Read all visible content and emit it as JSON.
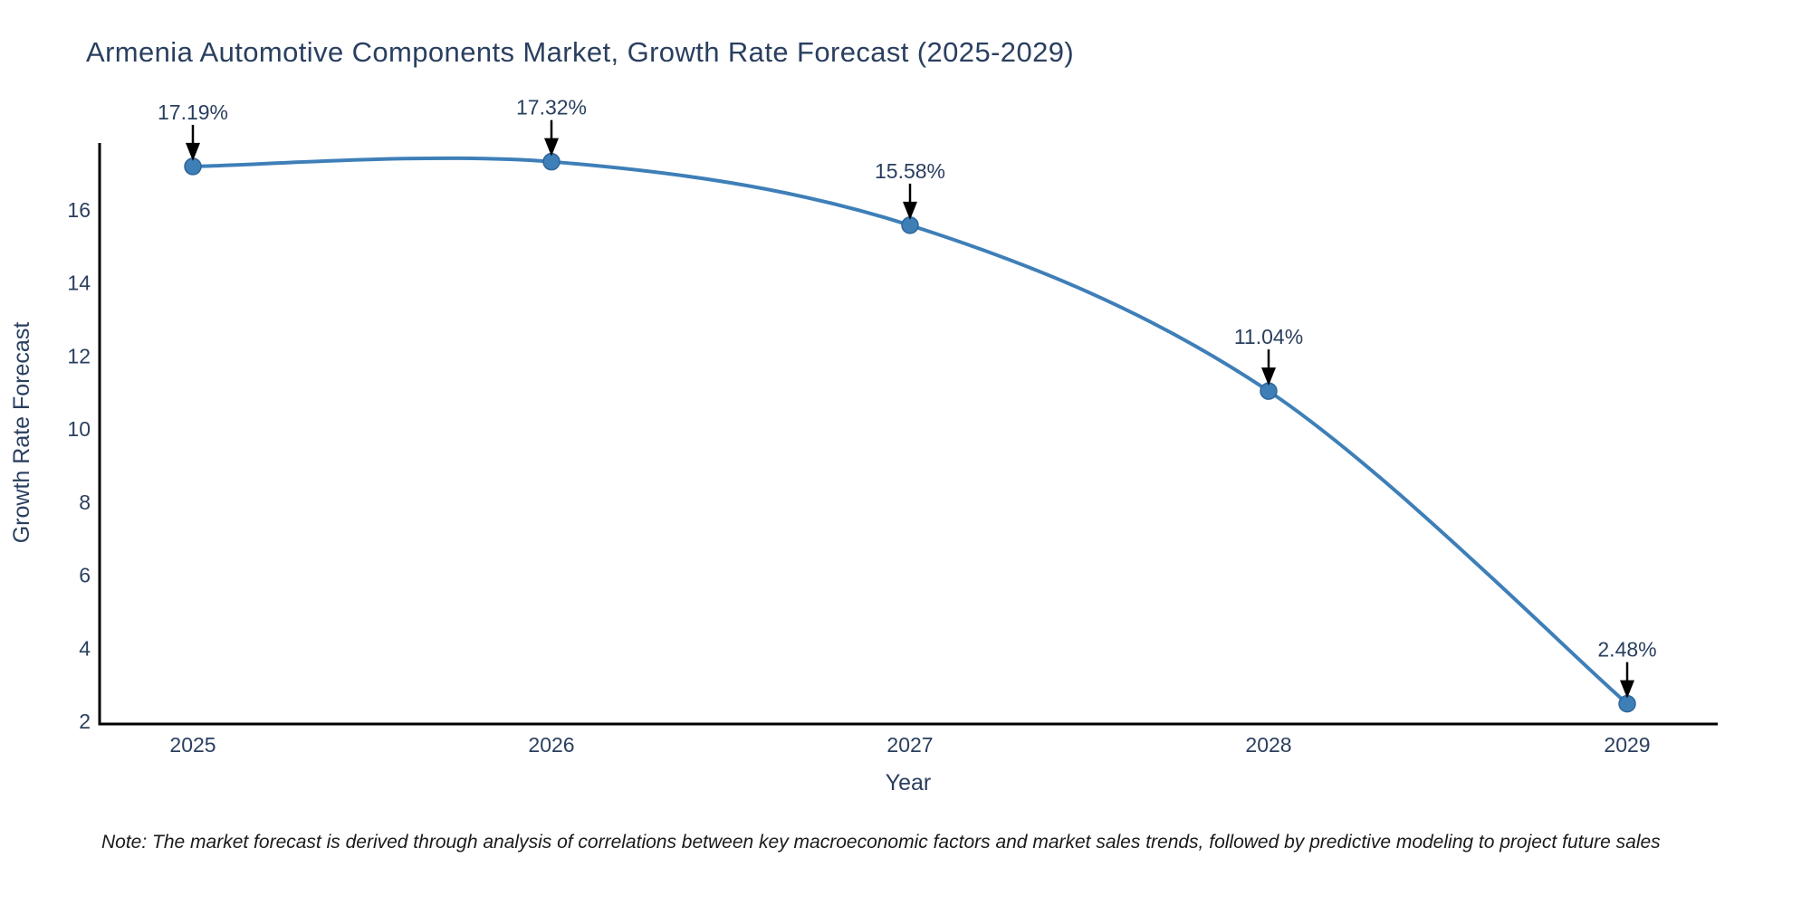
{
  "title": "Armenia Automotive Components Market, Growth Rate Forecast (2025-2029)",
  "note": "Note: The market forecast is derived through analysis of correlations between key macroeconomic factors and market sales trends, followed by predictive modeling to project future sales",
  "chart_data": {
    "type": "line",
    "title": "Armenia Automotive Components Market, Growth Rate Forecast (2025-2029)",
    "xlabel": "Year",
    "ylabel": "Growth Rate Forecast",
    "categories": [
      "2025",
      "2026",
      "2027",
      "2028",
      "2029"
    ],
    "series": [
      {
        "name": "Growth Rate Forecast",
        "values": [
          17.19,
          17.32,
          15.58,
          11.04,
          2.48
        ]
      }
    ],
    "data_labels": [
      "17.19%",
      "17.32%",
      "15.58%",
      "11.04%",
      "2.48%"
    ],
    "yticks": [
      2,
      4,
      6,
      8,
      10,
      12,
      14,
      16
    ],
    "ylim": [
      2,
      17.9
    ],
    "grid": false,
    "legend": "none",
    "line_shape": "spline",
    "marker": "circle",
    "annotation_style": "black-arrow-pointing-down-to-point",
    "colors": {
      "line": "#3e7fb8",
      "marker_fill": "#3e7fb8",
      "marker_edge": "#2f6699",
      "axis_line": "#000000",
      "arrow": "#000000",
      "text": "#2a3f5f",
      "note": "#1a1a1a",
      "background": "#ffffff"
    }
  }
}
